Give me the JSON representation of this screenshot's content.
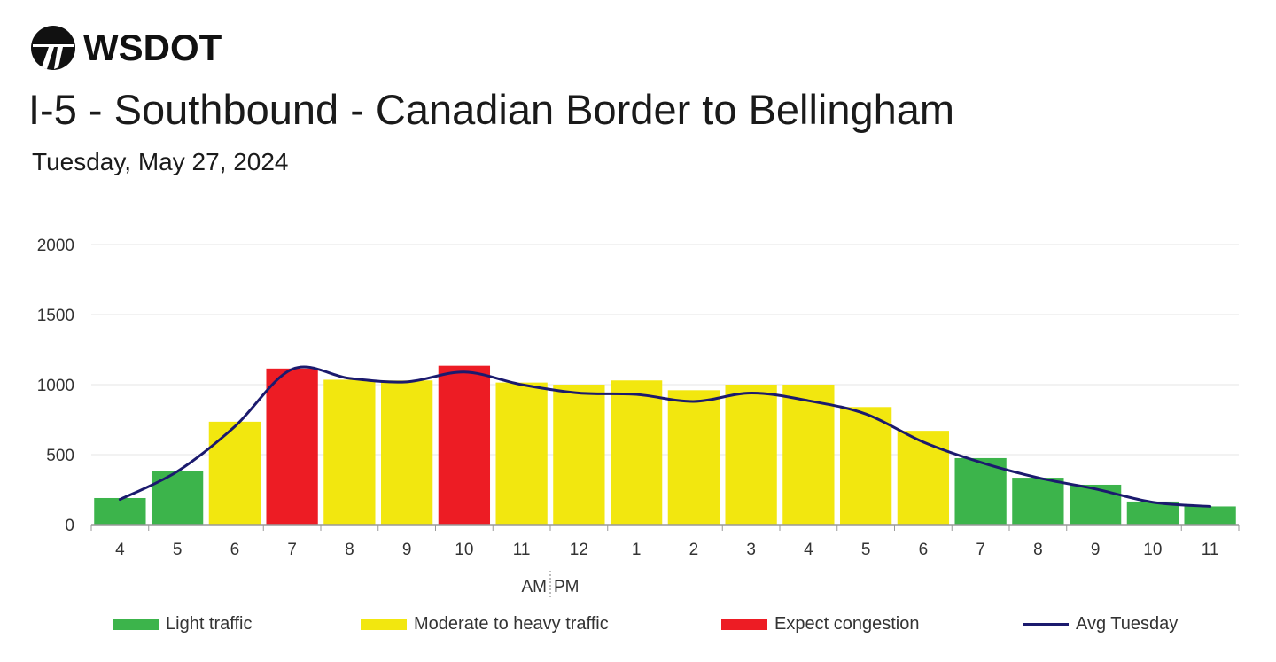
{
  "header": {
    "logo_text": "WSDOT",
    "title": "I-5 - Southbound - Canadian Border to Bellingham",
    "subtitle": "Tuesday, May 27, 2024"
  },
  "legend": {
    "light": "Light traffic",
    "moderate": "Moderate to heavy traffic",
    "congestion": "Expect congestion",
    "avg": "Avg Tuesday"
  },
  "colors": {
    "light": "#3cb44b",
    "moderate": "#f2e70f",
    "congestion": "#ed1c24",
    "avg": "#1b1a6e",
    "grid": "#e6e6e6"
  },
  "chart_data": {
    "type": "bar",
    "categories": [
      "4",
      "5",
      "6",
      "7",
      "8",
      "9",
      "10",
      "11",
      "12",
      "1",
      "2",
      "3",
      "4",
      "5",
      "6",
      "7",
      "8",
      "9",
      "10",
      "11"
    ],
    "ylim": [
      0,
      2000
    ],
    "yticks": [
      0,
      500,
      1000,
      1500,
      2000
    ],
    "x_sublabels": [
      "AM",
      "PM"
    ],
    "series": [
      {
        "name": "",
        "values": [
          190,
          385,
          735,
          1115,
          1035,
          1030,
          1135,
          1015,
          1000,
          1030,
          960,
          1000,
          1000,
          840,
          670,
          475,
          335,
          285,
          165,
          130
        ],
        "levels": [
          "light",
          "light",
          "moderate",
          "congestion",
          "moderate",
          "moderate",
          "congestion",
          "moderate",
          "moderate",
          "moderate",
          "moderate",
          "moderate",
          "moderate",
          "moderate",
          "moderate",
          "light",
          "light",
          "light",
          "light",
          "light"
        ]
      },
      {
        "name": "Avg Tuesday",
        "type": "line",
        "values": [
          180,
          380,
          700,
          1110,
          1045,
          1020,
          1090,
          1000,
          940,
          930,
          880,
          940,
          885,
          790,
          590,
          445,
          335,
          255,
          160,
          130
        ]
      }
    ],
    "grid": true,
    "legend_position": "bottom"
  }
}
